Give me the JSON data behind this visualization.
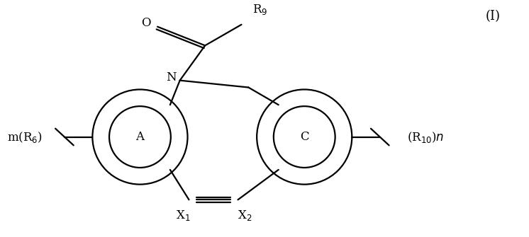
{
  "background": "#ffffff",
  "line_color": "#000000",
  "line_width": 1.6,
  "font_size": 12,
  "font_size_title": 13,
  "figsize": [
    7.46,
    3.35
  ],
  "dpi": 100,
  "title_text": "(I)",
  "label_A": "A",
  "label_C": "C",
  "label_N": "N",
  "label_O": "O",
  "label_R9": "R",
  "label_X1": "X",
  "label_X2": "X",
  "label_mR6": "m(R",
  "label_R10n": "(R"
}
